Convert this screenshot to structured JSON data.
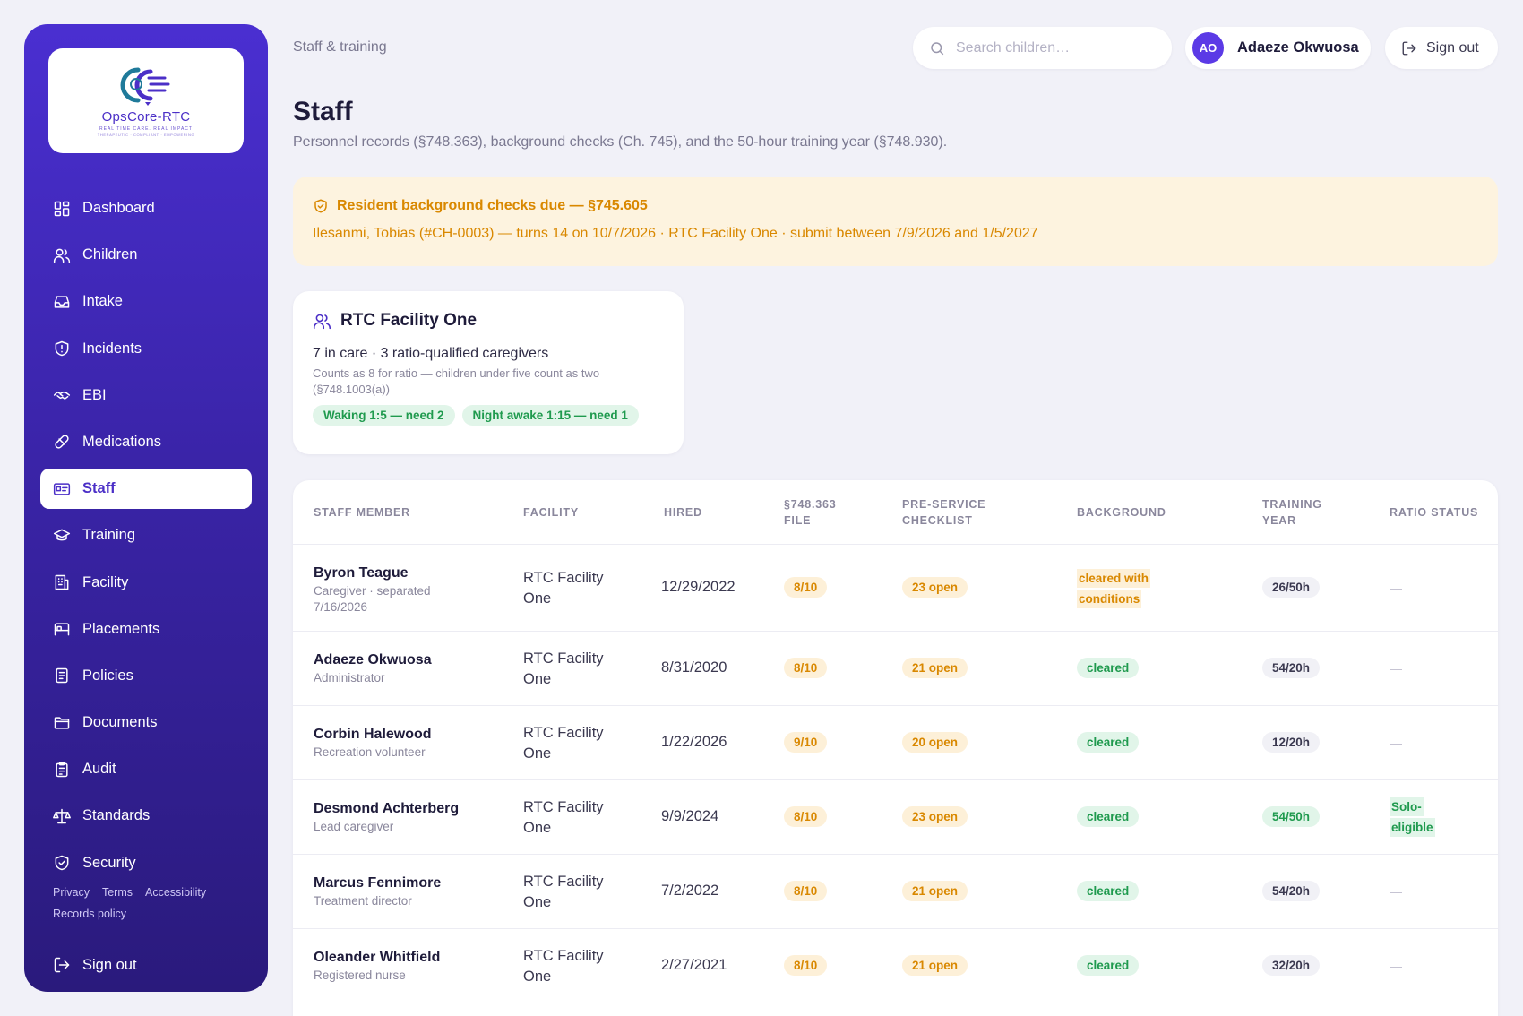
{
  "sidebar": {
    "logo": {
      "name": "OpsCore-RTC",
      "tagline": "REAL TIME CARE. REAL IMPACT",
      "subtagline": "THERAPEUTIC · COMPLIANT · EMPOWERING"
    },
    "items": [
      {
        "label": "Dashboard",
        "icon": "grid-icon"
      },
      {
        "label": "Children",
        "icon": "users-icon"
      },
      {
        "label": "Intake",
        "icon": "inbox-icon"
      },
      {
        "label": "Incidents",
        "icon": "shield-alert-icon"
      },
      {
        "label": "EBI",
        "icon": "handshake-icon"
      },
      {
        "label": "Medications",
        "icon": "pill-icon"
      },
      {
        "label": "Staff",
        "icon": "id-card-icon",
        "active": true
      },
      {
        "label": "Training",
        "icon": "graduation-cap-icon"
      },
      {
        "label": "Facility",
        "icon": "building-icon"
      },
      {
        "label": "Placements",
        "icon": "bed-icon"
      },
      {
        "label": "Policies",
        "icon": "document-icon"
      },
      {
        "label": "Documents",
        "icon": "folder-icon"
      },
      {
        "label": "Audit",
        "icon": "clipboard-icon"
      },
      {
        "label": "Standards",
        "icon": "scale-icon"
      },
      {
        "label": "Security",
        "icon": "shield-check-icon"
      }
    ],
    "links": {
      "privacy": "Privacy",
      "terms": "Terms",
      "accessibility": "Accessibility",
      "records_policy": "Records policy"
    },
    "signout": "Sign out"
  },
  "header": {
    "breadcrumb": "Staff & training",
    "search_placeholder": "Search children…",
    "user": {
      "initials": "AO",
      "name": "Adaeze Okwuosa"
    },
    "signout": "Sign out"
  },
  "page": {
    "title": "Staff",
    "subtitle": "Personnel records (§748.363), background checks (Ch. 745), and the 50-hour training year (§748.930)."
  },
  "alert": {
    "title": "Resident background checks due — §745.605",
    "body": "Ilesanmi, Tobias (#CH-0003) — turns 14 on 10/7/2026 · RTC Facility One · submit between 7/9/2026 and 1/5/2027"
  },
  "facility_card": {
    "name": "RTC Facility One",
    "summary": "7 in care · 3 ratio-qualified caregivers",
    "note": "Counts as 8 for ratio — children under five count as two (§748.1003(a))",
    "pills": [
      "Waking 1:5 — need 2",
      "Night awake 1:15 — need 1"
    ]
  },
  "table": {
    "headers": {
      "staff": "Staff member",
      "facility": "Facility",
      "hired": "Hired",
      "file": "§748.363 File",
      "checklist": "Pre-service checklist",
      "background": "Background",
      "training": "Training year",
      "ratio": "Ratio status"
    },
    "rows": [
      {
        "name": "Byron Teague",
        "role": "Caregiver · separated 7/16/2026",
        "facility": "RTC Facility One",
        "hired": "12/29/2022",
        "file": "8/10",
        "checklist": "23 open",
        "background": "cleared with conditions",
        "training": "26/50h",
        "ratio": "—"
      },
      {
        "name": "Adaeze Okwuosa",
        "role": "Administrator",
        "facility": "RTC Facility One",
        "hired": "8/31/2020",
        "file": "8/10",
        "checklist": "21 open",
        "background": "cleared",
        "training": "54/20h",
        "ratio": "—"
      },
      {
        "name": "Corbin Halewood",
        "role": "Recreation volunteer",
        "facility": "RTC Facility One",
        "hired": "1/22/2026",
        "file": "9/10",
        "checklist": "20 open",
        "background": "cleared",
        "training": "12/20h",
        "ratio": "—"
      },
      {
        "name": "Desmond Achterberg",
        "role": "Lead caregiver",
        "facility": "RTC Facility One",
        "hired": "9/9/2024",
        "file": "8/10",
        "checklist": "23 open",
        "background": "cleared",
        "training": "54/50h",
        "ratio": "Solo-eligible"
      },
      {
        "name": "Marcus Fennimore",
        "role": "Treatment director",
        "facility": "RTC Facility One",
        "hired": "7/2/2022",
        "file": "8/10",
        "checklist": "21 open",
        "background": "cleared",
        "training": "54/20h",
        "ratio": "—"
      },
      {
        "name": "Oleander Whitfield",
        "role": "Registered nurse",
        "facility": "RTC Facility One",
        "hired": "2/27/2021",
        "file": "8/10",
        "checklist": "21 open",
        "background": "cleared",
        "training": "32/20h",
        "ratio": "—"
      }
    ]
  },
  "colors": {
    "brand": "#4b2fc7",
    "amber": "#d98800",
    "green": "#1f9a4e",
    "alert_bg": "#fdf3df"
  }
}
